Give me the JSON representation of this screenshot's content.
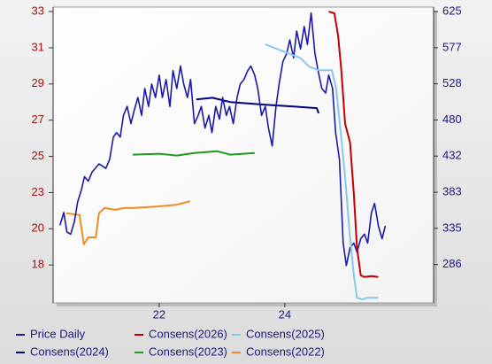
{
  "chart_data": {
    "type": "line",
    "xlim": [
      2020.31,
      2026.37
    ],
    "xticks": [
      {
        "value": 2022,
        "label": "22"
      },
      {
        "value": 2024,
        "label": "24"
      }
    ],
    "ylim": [
      16.1,
      33.26
    ],
    "yticks": [
      {
        "value": 18.3,
        "label": "18"
      },
      {
        "value": 20.4,
        "label": "20"
      },
      {
        "value": 22.5,
        "label": "23"
      },
      {
        "value": 24.6,
        "label": "25"
      },
      {
        "value": 26.7,
        "label": "27"
      },
      {
        "value": 28.8,
        "label": "29"
      },
      {
        "value": 30.9,
        "label": "31"
      },
      {
        "value": 33.0,
        "label": "33"
      }
    ],
    "y2lim": [
      235,
      631
    ],
    "y2ticks": [
      {
        "value": 286.4,
        "label": "286"
      },
      {
        "value": 334.8,
        "label": "335"
      },
      {
        "value": 383.1,
        "label": "383"
      },
      {
        "value": 431.5,
        "label": "432"
      },
      {
        "value": 479.9,
        "label": "480"
      },
      {
        "value": 528.3,
        "label": "528"
      },
      {
        "value": 576.6,
        "label": "577"
      },
      {
        "value": 625,
        "label": "625"
      }
    ],
    "series": [
      {
        "name": "Price Daily",
        "color": "#1a1aa6",
        "axis": "y2",
        "x": [
          2020.42,
          2020.48,
          2020.53,
          2020.59,
          2020.65,
          2020.7,
          2020.76,
          2020.81,
          2020.87,
          2020.93,
          2020.98,
          2021.04,
          2021.1,
          2021.15,
          2021.21,
          2021.27,
          2021.32,
          2021.38,
          2021.43,
          2021.49,
          2021.55,
          2021.6,
          2021.66,
          2021.72,
          2021.77,
          2021.83,
          2021.88,
          2021.94,
          2022.0,
          2022.05,
          2022.11,
          2022.17,
          2022.22,
          2022.28,
          2022.34,
          2022.39,
          2022.45,
          2022.5,
          2022.56,
          2022.62,
          2022.67,
          2022.73,
          2022.79,
          2022.84,
          2022.9,
          2022.96,
          2023.01,
          2023.07,
          2023.12,
          2023.18,
          2023.24,
          2023.29,
          2023.35,
          2023.41,
          2023.46,
          2023.52,
          2023.57,
          2023.63,
          2023.69,
          2023.74,
          2023.8,
          2023.86,
          2023.91,
          2023.97,
          2024.03,
          2024.08,
          2024.14,
          2024.19,
          2024.25,
          2024.31,
          2024.36,
          2024.42,
          2024.48,
          2024.53,
          2024.59,
          2024.65,
          2024.7,
          2024.76,
          2024.81,
          2024.87,
          2024.93,
          2024.98,
          2025.04,
          2025.1,
          2025.15,
          2025.21,
          2025.27,
          2025.32,
          2025.38,
          2025.43,
          2025.49,
          2025.55,
          2025.6
        ],
        "values": [
          339,
          356,
          330,
          327,
          344,
          370,
          386,
          404,
          398,
          410,
          415,
          421,
          418,
          415,
          427,
          457,
          463,
          457,
          486,
          498,
          475,
          492,
          510,
          486,
          522,
          498,
          528,
          510,
          540,
          510,
          534,
          498,
          546,
          522,
          552,
          528,
          510,
          534,
          475,
          486,
          498,
          469,
          486,
          463,
          498,
          481,
          510,
          486,
          498,
          475,
          510,
          528,
          534,
          546,
          552,
          540,
          522,
          486,
          498,
          469,
          445,
          498,
          528,
          558,
          569,
          587,
          563,
          599,
          575,
          605,
          581,
          623,
          569,
          546,
          522,
          516,
          540,
          522,
          463,
          427,
          315,
          285,
          309,
          315,
          303,
          321,
          327,
          315,
          356,
          368,
          338,
          321,
          338
        ]
      },
      {
        "name": "Consens(2026)",
        "color": "#c00000",
        "x": [
          2024.7,
          2024.79,
          2024.85,
          2024.9,
          2024.96,
          2025.04,
          2025.1,
          2025.15,
          2025.21,
          2025.27,
          2025.38,
          2025.49
        ],
        "values": [
          33.0,
          32.9,
          31.6,
          29.6,
          26.5,
          25.4,
          22.4,
          19.3,
          17.7,
          17.6,
          17.65,
          17.6
        ]
      },
      {
        "name": "Consens(2025)",
        "color": "#87c8ea",
        "x": [
          2023.69,
          2023.97,
          2024.25,
          2024.39,
          2024.54,
          2024.75,
          2024.82,
          2024.89,
          2024.96,
          2025.03,
          2025.1,
          2025.15,
          2025.24,
          2025.31,
          2025.38,
          2025.49
        ],
        "values": [
          31.1,
          30.7,
          30.3,
          29.8,
          29.6,
          29.6,
          28.5,
          26.0,
          23.4,
          20.3,
          17.7,
          16.4,
          16.3,
          16.4,
          16.4,
          16.4
        ]
      },
      {
        "name": "Consens(2024)",
        "color": "#000080",
        "x": [
          2022.59,
          2022.85,
          2023.13,
          2023.69,
          2024.11,
          2024.51,
          2024.54
        ],
        "values": [
          27.9,
          28.0,
          27.75,
          27.6,
          27.5,
          27.4,
          27.1
        ]
      },
      {
        "name": "Consens(2023)",
        "color": "#1e9a1e",
        "x": [
          2021.58,
          2022.0,
          2022.28,
          2022.56,
          2022.92,
          2023.13,
          2023.52
        ],
        "values": [
          24.7,
          24.75,
          24.65,
          24.8,
          24.9,
          24.7,
          24.8
        ]
      },
      {
        "name": "Consens(2022)",
        "color": "#f08c28",
        "x": [
          2020.52,
          2020.73,
          2020.8,
          2020.87,
          2020.99,
          2021.04,
          2021.13,
          2021.3,
          2021.44,
          2021.58,
          2022.0,
          2022.28,
          2022.49
        ],
        "values": [
          21.3,
          21.2,
          19.5,
          19.9,
          19.9,
          21.3,
          21.6,
          21.5,
          21.6,
          21.6,
          21.7,
          21.8,
          22.0
        ]
      }
    ]
  }
}
